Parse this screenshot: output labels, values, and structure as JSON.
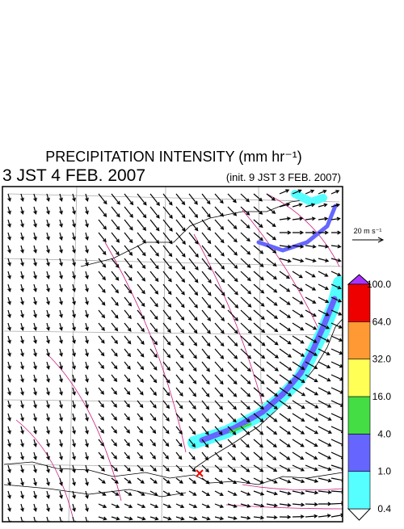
{
  "header": {
    "title": "PRECIPITATION INTENSITY (mm hr⁻¹)",
    "valid_time": "3 JST 4 FEB. 2007",
    "init_time": "(init. 9 JST 3 FEB. 2007)"
  },
  "reference_vector": {
    "label": "20 m s⁻¹"
  },
  "colorbar": {
    "labels": [
      "0.4",
      "1.0",
      "4.0",
      "16.0",
      "32.0",
      "64.0",
      "100.0"
    ],
    "colors": [
      "#55ffff",
      "#6666ff",
      "#44dd44",
      "#ffff55",
      "#ff9933",
      "#ee0000"
    ],
    "under_color": "#ffffff",
    "over_color": "#aa33ff"
  }
}
